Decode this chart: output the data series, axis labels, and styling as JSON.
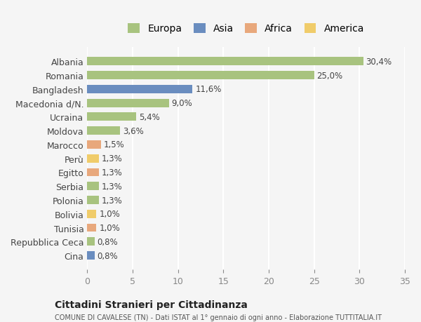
{
  "countries": [
    "Albania",
    "Romania",
    "Bangladesh",
    "Macedonia d/N.",
    "Ucraina",
    "Moldova",
    "Marocco",
    "Perù",
    "Egitto",
    "Serbia",
    "Polonia",
    "Bolivia",
    "Tunisia",
    "Repubblica Ceca",
    "Cina"
  ],
  "values": [
    30.4,
    25.0,
    11.6,
    9.0,
    5.4,
    3.6,
    1.5,
    1.3,
    1.3,
    1.3,
    1.3,
    1.0,
    1.0,
    0.8,
    0.8
  ],
  "labels": [
    "30,4%",
    "25,0%",
    "11,6%",
    "9,0%",
    "5,4%",
    "3,6%",
    "1,5%",
    "1,3%",
    "1,3%",
    "1,3%",
    "1,3%",
    "1,0%",
    "1,0%",
    "0,8%",
    "0,8%"
  ],
  "categories": [
    "Europa",
    "Europa",
    "Asia",
    "Europa",
    "Europa",
    "Europa",
    "Africa",
    "America",
    "Africa",
    "Europa",
    "Europa",
    "America",
    "Africa",
    "Europa",
    "Asia"
  ],
  "colors": {
    "Europa": "#a8c37f",
    "Asia": "#6a8dbf",
    "Africa": "#e8a87c",
    "America": "#f0cc6a"
  },
  "legend_order": [
    "Europa",
    "Asia",
    "Africa",
    "America"
  ],
  "bg_color": "#f5f5f5",
  "grid_color": "#ffffff",
  "title": "Cittadini Stranieri per Cittadinanza",
  "subtitle": "COMUNE DI CAVALESE (TN) - Dati ISTAT al 1° gennaio di ogni anno - Elaborazione TUTTITALIA.IT",
  "xlim": [
    0,
    35
  ],
  "xticks": [
    0,
    5,
    10,
    15,
    20,
    25,
    30,
    35
  ]
}
